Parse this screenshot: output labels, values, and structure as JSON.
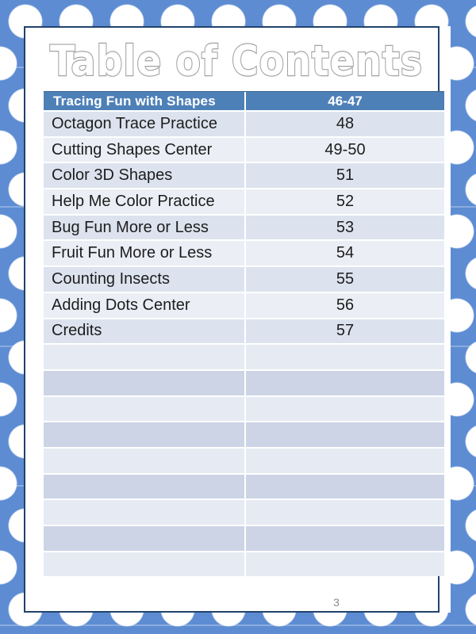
{
  "page": {
    "title": "Table of Contents",
    "page_number": "3"
  },
  "table": {
    "header": {
      "title": "Tracing Fun with Shapes",
      "pages": "46-47"
    },
    "rows": [
      {
        "title": "Octagon Trace Practice",
        "pages": "48",
        "tone": "dark"
      },
      {
        "title": "Cutting Shapes Center",
        "pages": "49-50",
        "tone": "light"
      },
      {
        "title": "Color 3D Shapes",
        "pages": "51",
        "tone": "dark"
      },
      {
        "title": "Help Me Color Practice",
        "pages": "52",
        "tone": "light"
      },
      {
        "title": "Bug Fun More or Less",
        "pages": "53",
        "tone": "dark"
      },
      {
        "title": "Fruit Fun More or Less",
        "pages": "54",
        "tone": "light"
      },
      {
        "title": "Counting Insects",
        "pages": "55",
        "tone": "dark"
      },
      {
        "title": "Adding Dots Center",
        "pages": "56",
        "tone": "light"
      },
      {
        "title": "Credits",
        "pages": "57",
        "tone": "dark"
      },
      {
        "title": "",
        "pages": "",
        "tone": "empty_light"
      },
      {
        "title": "",
        "pages": "",
        "tone": "empty_dark"
      },
      {
        "title": "",
        "pages": "",
        "tone": "empty_light"
      },
      {
        "title": "",
        "pages": "",
        "tone": "empty_dark"
      },
      {
        "title": "",
        "pages": "",
        "tone": "empty_light"
      },
      {
        "title": "",
        "pages": "",
        "tone": "empty_dark"
      },
      {
        "title": "",
        "pages": "",
        "tone": "empty_light"
      },
      {
        "title": "",
        "pages": "",
        "tone": "empty_dark"
      },
      {
        "title": "",
        "pages": "",
        "tone": "empty_light"
      }
    ]
  },
  "theme": {
    "colors": {
      "bg_blue": "#5d8cd2",
      "dot_white": "#ffffff",
      "border_navy": "#21426b",
      "header_blue": "#4e80b8",
      "header_text": "#ffffff",
      "band_dark": "#dce3ef",
      "band_light": "#ebeef5",
      "empty_light": "#e6eaf3",
      "empty_dark": "#ccd4e6",
      "grid_white": "#ffffff",
      "row_text": "#1d1d1d",
      "title_fill": "#ffffff",
      "title_outline": "#a3a3a3",
      "page_number_gray": "#8a8a8a"
    }
  }
}
